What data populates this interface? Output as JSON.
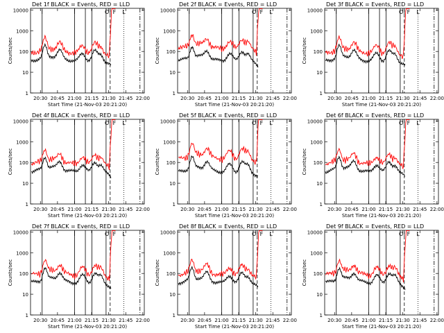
{
  "chart_data": [
    {
      "type": "line",
      "title": "Det 1f BLACK = Events, RED = LLD",
      "ylabel": "Counts/sec",
      "xlabel": "Start Time (21-Nov-03 20:21:20)"
    },
    {
      "type": "line",
      "title": "Det 2f BLACK = Events, RED = LLD",
      "ylabel": "Counts/sec",
      "xlabel": "Start Time (21-Nov-03 20:21:20)"
    },
    {
      "type": "line",
      "title": "Det 3f BLACK = Events, RED = LLD",
      "ylabel": "Counts/sec",
      "xlabel": "Start Time (21-Nov-03 20:21:20)"
    },
    {
      "type": "line",
      "title": "Det 4f BLACK = Events, RED = LLD",
      "ylabel": "Counts/sec",
      "xlabel": "Start Time (21-Nov-03 20:21:20)"
    },
    {
      "type": "line",
      "title": "Det 5f BLACK = Events, RED = LLD",
      "ylabel": "Counts/sec",
      "xlabel": "Start Time (21-Nov-03 20:21:20)"
    },
    {
      "type": "line",
      "title": "Det 6f BLACK = Events, RED = LLD",
      "ylabel": "Counts/sec",
      "xlabel": "Start Time (21-Nov-03 20:21:20)"
    },
    {
      "type": "line",
      "title": "Det 7f BLACK = Events, RED = LLD",
      "ylabel": "Counts/sec",
      "xlabel": "Start Time (21-Nov-03 20:21:20)"
    },
    {
      "type": "line",
      "title": "Det 8f BLACK = Events, RED = LLD",
      "ylabel": "Counts/sec",
      "xlabel": "Start Time (21-Nov-03 20:21:20)"
    },
    {
      "type": "line",
      "title": "Det 9f BLACK = Events, RED = LLD",
      "ylabel": "Counts/sec",
      "xlabel": "Start Time (21-Nov-03 20:21:20)"
    }
  ],
  "axes": {
    "x_ticks": [
      "20:30",
      "20:45",
      "21:00",
      "21:15",
      "21:30",
      "21:45",
      "22:00"
    ],
    "x_tick_minutes": [
      30,
      45,
      60,
      75,
      90,
      105,
      120
    ],
    "x_range_minutes": [
      21.3,
      121.3
    ],
    "y_scale": "log",
    "y_range": [
      1,
      12000
    ],
    "y_ticks": [
      "1",
      "10",
      "100",
      "1000",
      "10000"
    ],
    "y_tick_values": [
      1,
      10,
      100,
      1000,
      10000
    ]
  },
  "series_colors": {
    "events": "#000000",
    "lld": "#ff0000"
  },
  "markers": {
    "solid_lines_minutes": [
      31.5,
      60.0,
      69.5,
      75.3,
      87.7
    ],
    "dashed_line_minutes": 91.3,
    "dotted_line_minutes": 103.3,
    "dashdot_line_minutes": 117.5,
    "top_symbols": [
      "I",
      "I",
      "O",
      "I",
      "F",
      "L"
    ]
  }
}
